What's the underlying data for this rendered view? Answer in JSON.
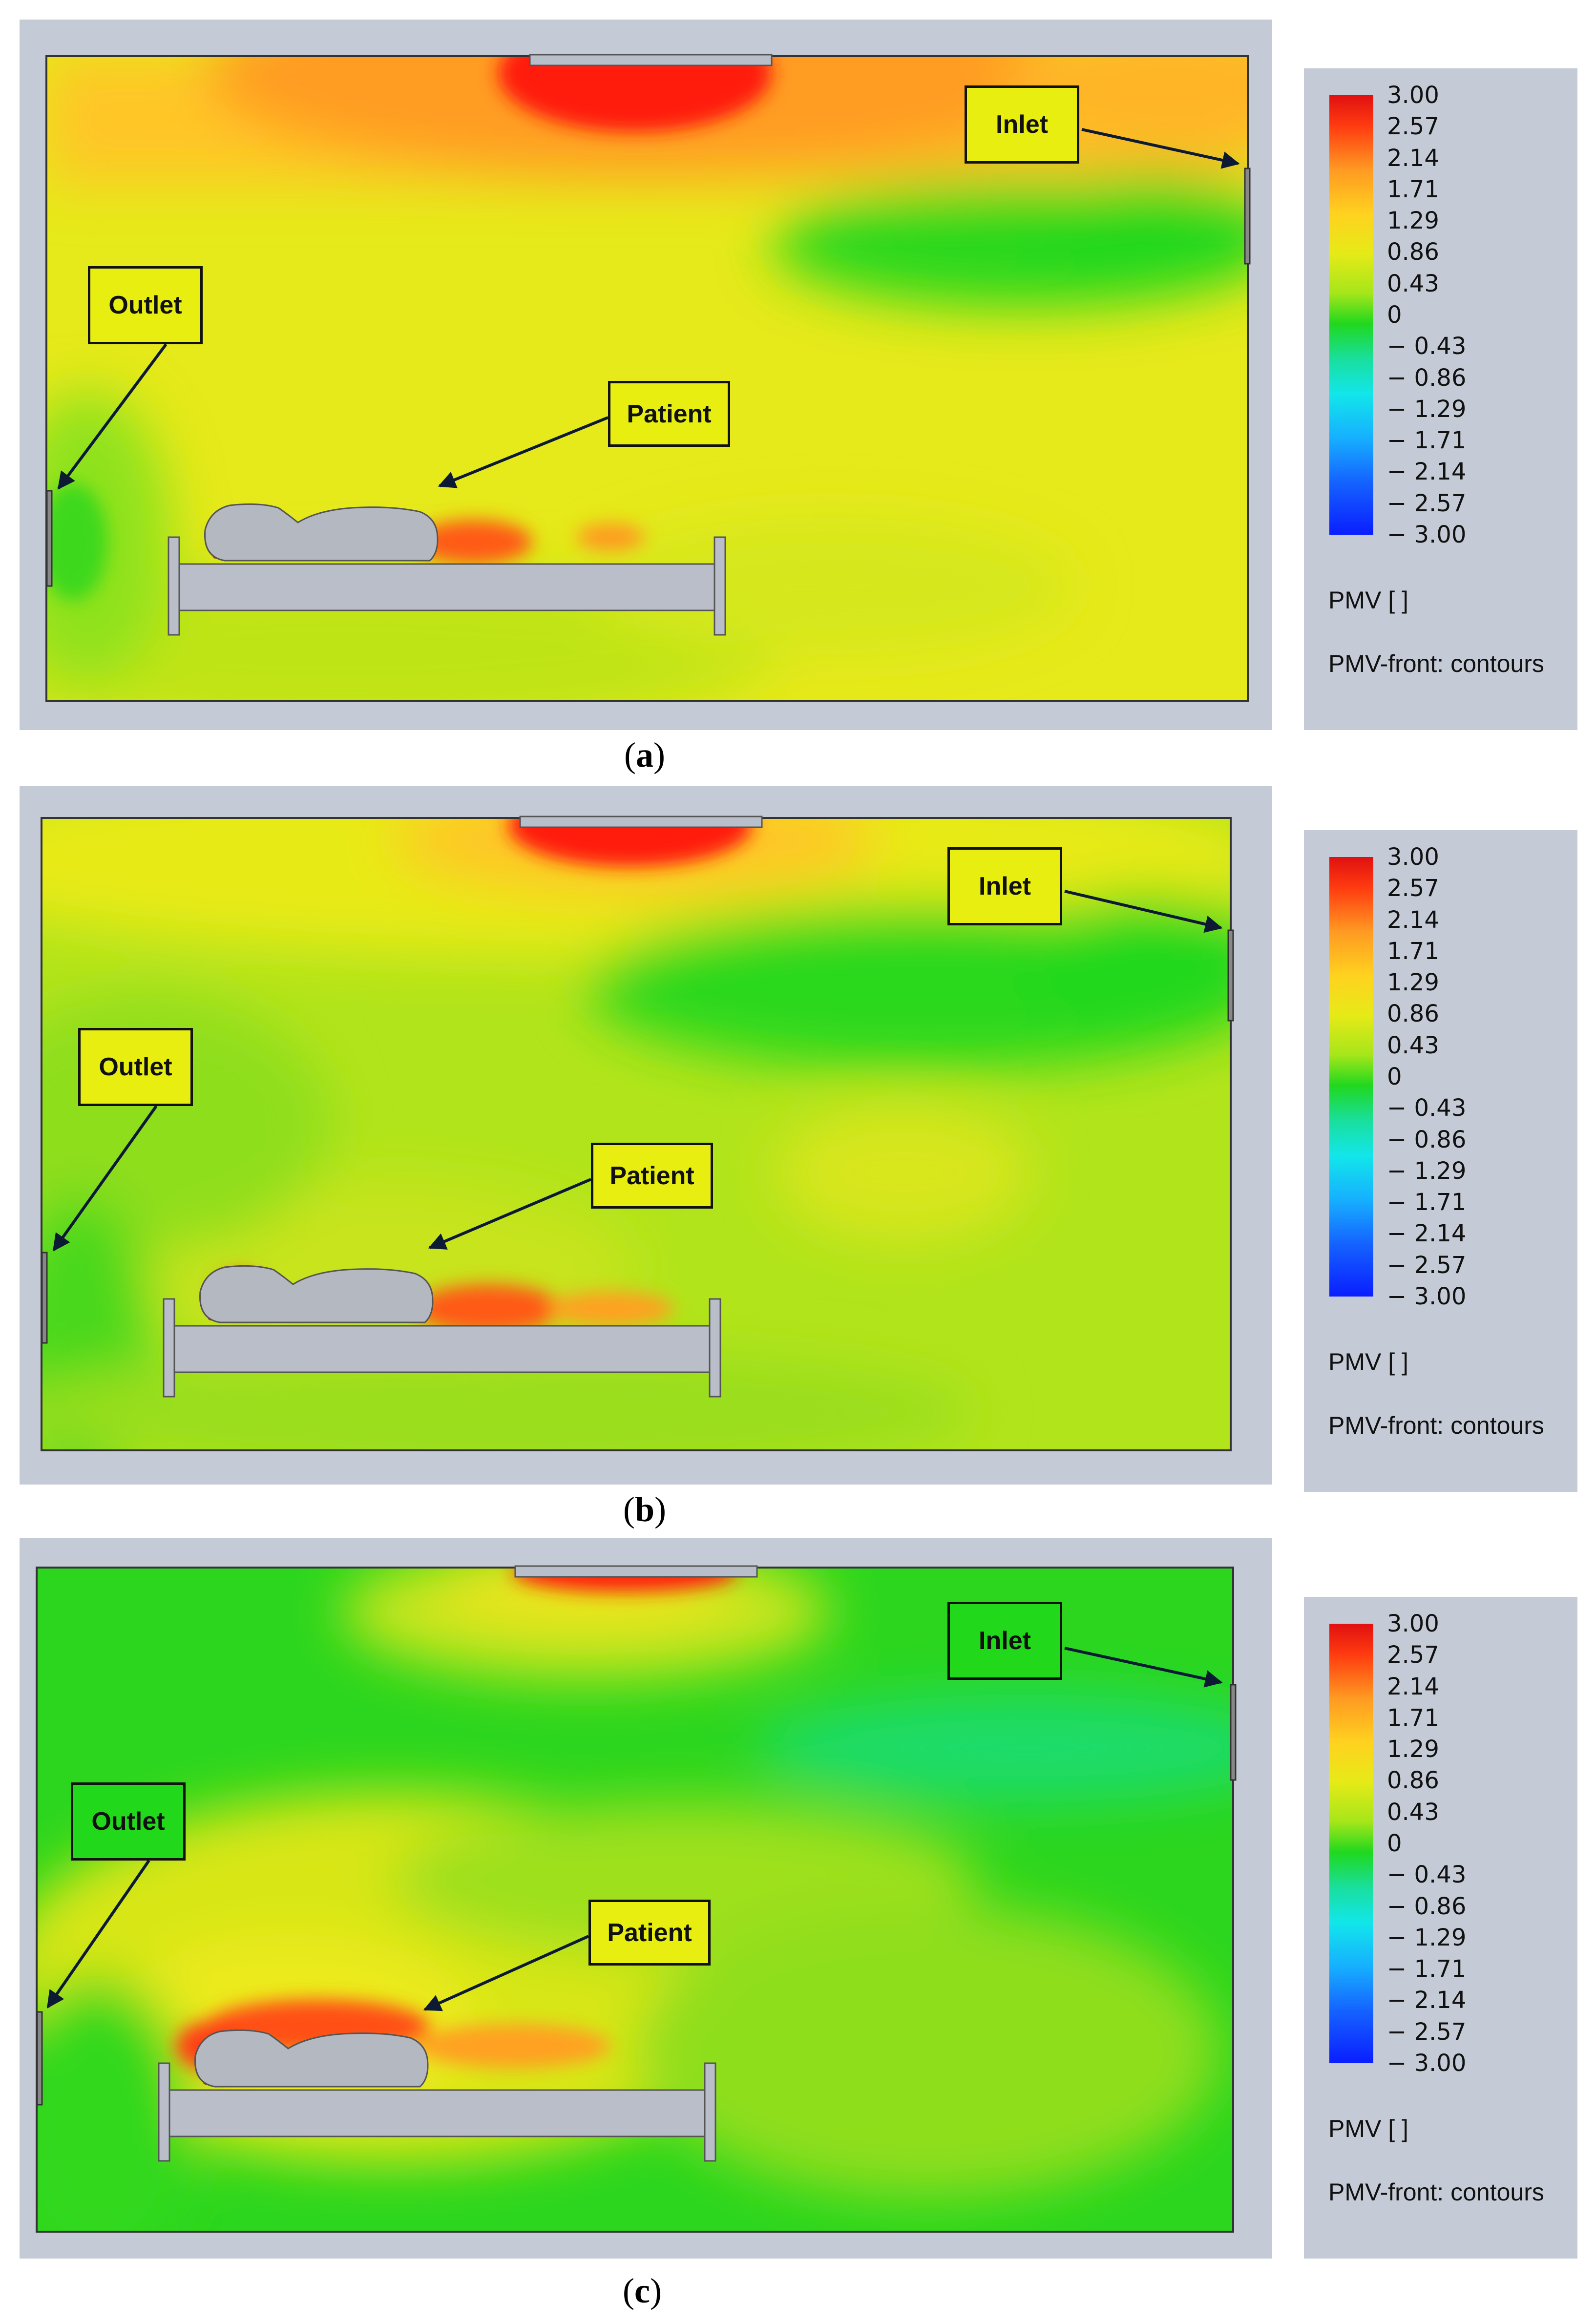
{
  "panels": [
    {
      "caption_open": "(",
      "caption_letter": "a",
      "caption_close": ")"
    },
    {
      "caption_open": "(",
      "caption_letter": "b",
      "caption_close": ")"
    },
    {
      "caption_open": "(",
      "caption_letter": "c",
      "caption_close": ")"
    }
  ],
  "labels": {
    "inlet": "Inlet",
    "outlet": "Outlet",
    "patient": "Patient"
  },
  "legend": {
    "ticks": [
      "3.00",
      "2.57",
      "2.14",
      "1.71",
      "1.29",
      "0.86",
      "0.43",
      "0",
      "− 0.43",
      "− 0.86",
      "− 1.29",
      "− 1.71",
      "− 2.14",
      "− 2.57",
      "− 3.00"
    ],
    "title": "PMV [ ]",
    "subtitle": "PMV-front: contours",
    "range": [
      -3.0,
      3.0
    ]
  },
  "colors": {
    "frame": "#c5cbd6",
    "label_fill": "#e8ee10",
    "inlet_outlet_fill": "#22dd22",
    "hot": "#ff1a10",
    "warm": "#ffc21a",
    "neutral_yellow": "#e8ec18",
    "cool_green": "#22d81a"
  }
}
